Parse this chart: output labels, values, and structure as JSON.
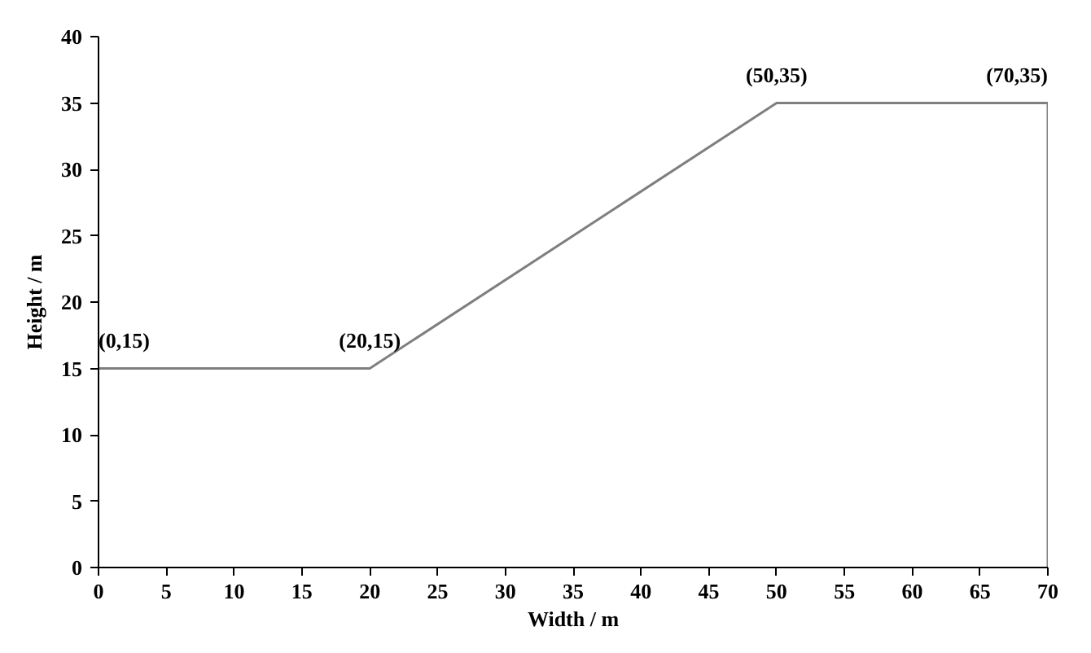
{
  "chart_data": {
    "type": "line",
    "xlabel": "Width / m",
    "ylabel": "Height / m",
    "x": [
      0,
      20,
      50,
      70,
      70
    ],
    "series": [
      {
        "color": "#7f7f7f",
        "values": [
          15,
          15,
          35,
          35,
          0
        ]
      }
    ],
    "xlim": [
      0,
      70
    ],
    "ylim": [
      0,
      40
    ],
    "xticks": [
      0,
      5,
      10,
      15,
      20,
      25,
      30,
      35,
      40,
      45,
      50,
      55,
      60,
      65,
      70
    ],
    "yticks": [
      0,
      5,
      10,
      15,
      20,
      25,
      30,
      35,
      40
    ],
    "grid": false,
    "marker": "none",
    "line_style": "solid",
    "annotations": [
      {
        "text": "(0,15)",
        "x": 0,
        "y": 15
      },
      {
        "text": "(20,15)",
        "x": 20,
        "y": 15
      },
      {
        "text": "(50,35)",
        "x": 50,
        "y": 35
      },
      {
        "text": "(70,35)",
        "x": 70,
        "y": 35
      }
    ]
  }
}
